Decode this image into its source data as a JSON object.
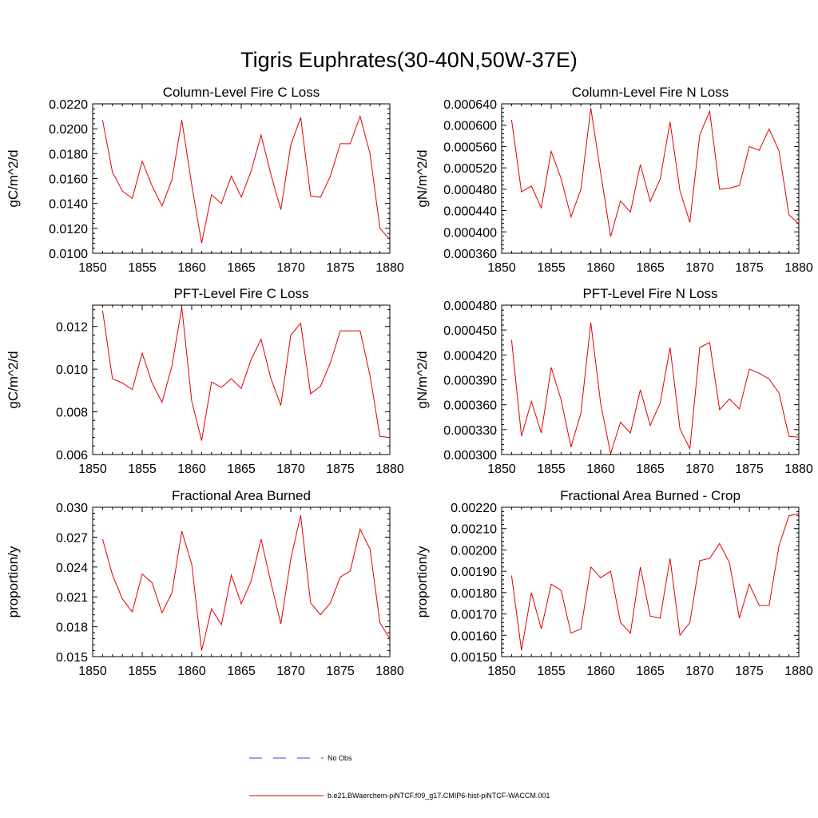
{
  "figure": {
    "title": "Tigris Euphrates(30-40N,50W-37E)"
  },
  "legend": {
    "items": [
      {
        "label": "No Obs",
        "color": "#3b3bd6",
        "style": "dashed"
      },
      {
        "label": "b.e21.BWaerchem-piNTCF.f09_g17.CMIP6-hist-piNTCF-WACCM.001",
        "color": "#e00000",
        "style": "solid"
      }
    ]
  },
  "chart_data": [
    {
      "type": "line",
      "title": "Column-Level Fire C Loss",
      "ylabel": "gC/m^2/d",
      "xlim": [
        1850,
        1880
      ],
      "ylim": [
        0.01,
        0.022
      ],
      "xticks": [
        1850,
        1855,
        1860,
        1865,
        1870,
        1875,
        1880
      ],
      "xtick_labels": [
        "1850",
        "1855",
        "1860",
        "1865",
        "1870",
        "1875",
        "1880"
      ],
      "yticks": [
        0.01,
        0.012,
        0.014,
        0.016,
        0.018,
        0.02,
        0.022
      ],
      "ytick_labels": [
        "0.0100",
        "0.0120",
        "0.0140",
        "0.0160",
        "0.0180",
        "0.0200",
        "0.0220"
      ],
      "x": [
        1851,
        1852,
        1853,
        1854,
        1855,
        1856,
        1857,
        1858,
        1859,
        1860,
        1861,
        1862,
        1863,
        1864,
        1865,
        1866,
        1867,
        1868,
        1869,
        1870,
        1871,
        1872,
        1873,
        1874,
        1875,
        1876,
        1877,
        1878,
        1879,
        1880
      ],
      "series": [
        {
          "color": "#e00000",
          "values": [
            0.0207,
            0.0165,
            0.015,
            0.0144,
            0.0174,
            0.0154,
            0.0138,
            0.0159,
            0.0207,
            0.0155,
            0.0108,
            0.0147,
            0.014,
            0.0162,
            0.0145,
            0.0166,
            0.0195,
            0.0163,
            0.0135,
            0.0187,
            0.0209,
            0.0146,
            0.0145,
            0.0162,
            0.0188,
            0.0188,
            0.021,
            0.018,
            0.012,
            0.0111
          ]
        }
      ]
    },
    {
      "type": "line",
      "title": "Column-Level Fire N Loss",
      "ylabel": "gN/m^2/d",
      "xlim": [
        1850,
        1880
      ],
      "ylim": [
        0.00036,
        0.00064
      ],
      "xticks": [
        1850,
        1855,
        1860,
        1865,
        1870,
        1875,
        1880
      ],
      "xtick_labels": [
        "1850",
        "1855",
        "1860",
        "1865",
        "1870",
        "1875",
        "1880"
      ],
      "yticks": [
        0.00036,
        0.0004,
        0.00044,
        0.00048,
        0.00052,
        0.00056,
        0.0006,
        0.00064
      ],
      "ytick_labels": [
        "0.000360",
        "0.000400",
        "0.000440",
        "0.000480",
        "0.000520",
        "0.000560",
        "0.000600",
        "0.000640"
      ],
      "x": [
        1851,
        1852,
        1853,
        1854,
        1855,
        1856,
        1857,
        1858,
        1859,
        1860,
        1861,
        1862,
        1863,
        1864,
        1865,
        1866,
        1867,
        1868,
        1869,
        1870,
        1871,
        1872,
        1873,
        1874,
        1875,
        1876,
        1877,
        1878,
        1879,
        1880
      ],
      "series": [
        {
          "color": "#e00000",
          "values": [
            0.00061,
            0.000475,
            0.000486,
            0.000445,
            0.000551,
            0.0005,
            0.000428,
            0.00048,
            0.000632,
            0.00051,
            0.000391,
            0.000458,
            0.000437,
            0.000526,
            0.000457,
            0.000499,
            0.000606,
            0.000477,
            0.000418,
            0.000582,
            0.000626,
            0.00048,
            0.000482,
            0.000487,
            0.00056,
            0.000553,
            0.000593,
            0.000552,
            0.000432,
            0.000415
          ]
        }
      ]
    },
    {
      "type": "line",
      "title": "PFT-Level Fire C Loss",
      "ylabel": "gC/m^2/d",
      "xlim": [
        1850,
        1880
      ],
      "ylim": [
        0.006,
        0.013
      ],
      "xticks": [
        1850,
        1855,
        1860,
        1865,
        1870,
        1875,
        1880
      ],
      "xtick_labels": [
        "1850",
        "1855",
        "1860",
        "1865",
        "1870",
        "1875",
        "1880"
      ],
      "yticks": [
        0.006,
        0.008,
        0.01,
        0.012
      ],
      "ytick_labels": [
        "0.006",
        "0.008",
        "0.010",
        "0.012"
      ],
      "x": [
        1851,
        1852,
        1853,
        1854,
        1855,
        1856,
        1857,
        1858,
        1859,
        1860,
        1861,
        1862,
        1863,
        1864,
        1865,
        1866,
        1867,
        1868,
        1869,
        1870,
        1871,
        1872,
        1873,
        1874,
        1875,
        1876,
        1877,
        1878,
        1879,
        1880
      ],
      "series": [
        {
          "color": "#e00000",
          "values": [
            0.01275,
            0.00955,
            0.00935,
            0.00905,
            0.01075,
            0.00935,
            0.00845,
            0.01015,
            0.0129,
            0.0085,
            0.00665,
            0.0094,
            0.00915,
            0.00955,
            0.0091,
            0.01045,
            0.0114,
            0.00955,
            0.0083,
            0.0116,
            0.01215,
            0.00885,
            0.0092,
            0.0103,
            0.0118,
            0.0118,
            0.0118,
            0.0097,
            0.00685,
            0.0068
          ]
        }
      ]
    },
    {
      "type": "line",
      "title": "PFT-Level Fire N Loss",
      "ylabel": "gN/m^2/d",
      "xlim": [
        1850,
        1880
      ],
      "ylim": [
        0.0003,
        0.00048
      ],
      "xticks": [
        1850,
        1855,
        1860,
        1865,
        1870,
        1875,
        1880
      ],
      "xtick_labels": [
        "1850",
        "1855",
        "1860",
        "1865",
        "1870",
        "1875",
        "1880"
      ],
      "yticks": [
        0.0003,
        0.00033,
        0.00036,
        0.00039,
        0.00042,
        0.00045,
        0.00048
      ],
      "ytick_labels": [
        "0.000300",
        "0.000330",
        "0.000360",
        "0.000390",
        "0.000420",
        "0.000450",
        "0.000480"
      ],
      "x": [
        1851,
        1852,
        1853,
        1854,
        1855,
        1856,
        1857,
        1858,
        1859,
        1860,
        1861,
        1862,
        1863,
        1864,
        1865,
        1866,
        1867,
        1868,
        1869,
        1870,
        1871,
        1872,
        1873,
        1874,
        1875,
        1876,
        1877,
        1878,
        1879,
        1880
      ],
      "series": [
        {
          "color": "#e00000",
          "values": [
            0.000438,
            0.000322,
            0.000364,
            0.000326,
            0.000405,
            0.000366,
            0.000309,
            0.00035,
            0.000459,
            0.000361,
            0.000301,
            0.000339,
            0.000326,
            0.000378,
            0.000335,
            0.000362,
            0.000429,
            0.000331,
            0.000307,
            0.000429,
            0.000435,
            0.000354,
            0.000367,
            0.000355,
            0.000403,
            0.000398,
            0.000391,
            0.000374,
            0.000322,
            0.000321
          ]
        }
      ]
    },
    {
      "type": "line",
      "title": "Fractional Area Burned",
      "ylabel": "proportion/y",
      "xlim": [
        1850,
        1880
      ],
      "ylim": [
        0.015,
        0.03
      ],
      "xticks": [
        1850,
        1855,
        1860,
        1865,
        1870,
        1875,
        1880
      ],
      "xtick_labels": [
        "1850",
        "1855",
        "1860",
        "1865",
        "1870",
        "1875",
        "1880"
      ],
      "yticks": [
        0.015,
        0.018,
        0.021,
        0.024,
        0.027,
        0.03
      ],
      "ytick_labels": [
        "0.015",
        "0.018",
        "0.021",
        "0.024",
        "0.027",
        "0.030"
      ],
      "x": [
        1851,
        1852,
        1853,
        1854,
        1855,
        1856,
        1857,
        1858,
        1859,
        1860,
        1861,
        1862,
        1863,
        1864,
        1865,
        1866,
        1867,
        1868,
        1869,
        1870,
        1871,
        1872,
        1873,
        1874,
        1875,
        1876,
        1877,
        1878,
        1879,
        1880
      ],
      "series": [
        {
          "color": "#e00000",
          "values": [
            0.0268,
            0.0232,
            0.0208,
            0.0195,
            0.0233,
            0.0224,
            0.0194,
            0.0214,
            0.0276,
            0.0243,
            0.0156,
            0.0198,
            0.0182,
            0.0232,
            0.0203,
            0.0226,
            0.0268,
            0.0224,
            0.0183,
            0.0248,
            0.0292,
            0.0204,
            0.0192,
            0.0204,
            0.023,
            0.0236,
            0.0278,
            0.0258,
            0.0184,
            0.0168
          ]
        }
      ]
    },
    {
      "type": "line",
      "title": "Fractional Area Burned - Crop",
      "ylabel": "proportion/y",
      "xlim": [
        1850,
        1880
      ],
      "ylim": [
        0.0015,
        0.0022
      ],
      "xticks": [
        1850,
        1855,
        1860,
        1865,
        1870,
        1875,
        1880
      ],
      "xtick_labels": [
        "1850",
        "1855",
        "1860",
        "1865",
        "1870",
        "1875",
        "1880"
      ],
      "yticks": [
        0.0015,
        0.0016,
        0.0017,
        0.0018,
        0.0019,
        0.002,
        0.0021,
        0.0022
      ],
      "ytick_labels": [
        "0.00150",
        "0.00160",
        "0.00170",
        "0.00180",
        "0.00190",
        "0.00200",
        "0.00210",
        "0.00220"
      ],
      "x": [
        1851,
        1852,
        1853,
        1854,
        1855,
        1856,
        1857,
        1858,
        1859,
        1860,
        1861,
        1862,
        1863,
        1864,
        1865,
        1866,
        1867,
        1868,
        1869,
        1870,
        1871,
        1872,
        1873,
        1874,
        1875,
        1876,
        1877,
        1878,
        1879,
        1880
      ],
      "series": [
        {
          "color": "#e00000",
          "values": [
            0.00188,
            0.00153,
            0.0018,
            0.00163,
            0.00184,
            0.00181,
            0.00161,
            0.00163,
            0.00192,
            0.00187,
            0.0019,
            0.00166,
            0.00161,
            0.00192,
            0.00169,
            0.00168,
            0.00196,
            0.0016,
            0.00166,
            0.00195,
            0.00196,
            0.00203,
            0.00194,
            0.00168,
            0.00184,
            0.00174,
            0.00174,
            0.00202,
            0.00216,
            0.00217
          ]
        }
      ]
    }
  ]
}
